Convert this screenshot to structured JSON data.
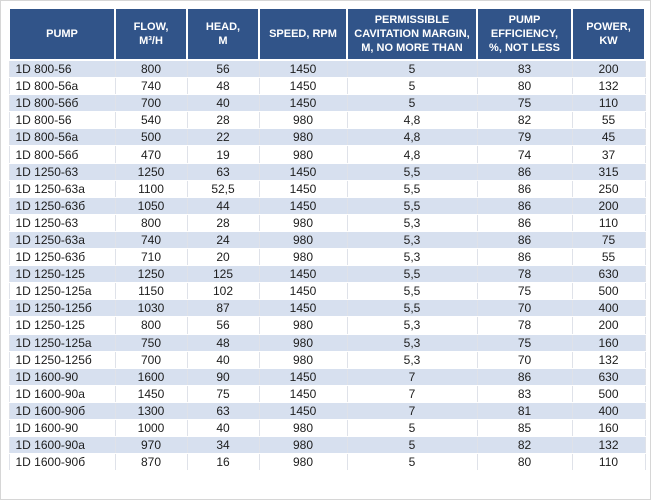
{
  "theme": {
    "header_bg": "#315489",
    "header_text": "#ffffff",
    "stripe_bg": "#d7e0ef",
    "row_bg": "#ffffff",
    "body_text": "#1d1d1d"
  },
  "table": {
    "columns": [
      {
        "id": "pump",
        "label": "PUMP"
      },
      {
        "id": "flow",
        "label": "FLOW,\nM³/H"
      },
      {
        "id": "head",
        "label": "HEAD,\nM"
      },
      {
        "id": "speed",
        "label": "SPEED, RPM"
      },
      {
        "id": "cavitation",
        "label": "PERMISSIBLE\nCAVITATION MARGIN,\nM, NO MORE THAN"
      },
      {
        "id": "efficiency",
        "label": "PUMP\nEFFICIENCY,\n%, NOT LESS"
      },
      {
        "id": "power",
        "label": "POWER,\nKW"
      }
    ],
    "rows": [
      [
        "1D 800-56",
        "800",
        "56",
        "1450",
        "5",
        "83",
        "200"
      ],
      [
        "1D 800-56a",
        "740",
        "48",
        "1450",
        "5",
        "80",
        "132"
      ],
      [
        "1D 800-56б",
        "700",
        "40",
        "1450",
        "5",
        "75",
        "110"
      ],
      [
        "1D 800-56",
        "540",
        "28",
        "980",
        "4,8",
        "82",
        "55"
      ],
      [
        "1D 800-56a",
        "500",
        "22",
        "980",
        "4,8",
        "79",
        "45"
      ],
      [
        "1D 800-56б",
        "470",
        "19",
        "980",
        "4,8",
        "74",
        "37"
      ],
      [
        "1D 1250-63",
        "1250",
        "63",
        "1450",
        "5,5",
        "86",
        "315"
      ],
      [
        "1D 1250-63a",
        "1100",
        "52,5",
        "1450",
        "5,5",
        "86",
        "250"
      ],
      [
        "1D 1250-63б",
        "1050",
        "44",
        "1450",
        "5,5",
        "86",
        "200"
      ],
      [
        "1D 1250-63",
        "800",
        "28",
        "980",
        "5,3",
        "86",
        "110"
      ],
      [
        "1D 1250-63a",
        "740",
        "24",
        "980",
        "5,3",
        "86",
        "75"
      ],
      [
        "1D 1250-63б",
        "710",
        "20",
        "980",
        "5,3",
        "86",
        "55"
      ],
      [
        "1D 1250-125",
        "1250",
        "125",
        "1450",
        "5,5",
        "78",
        "630"
      ],
      [
        "1D 1250-125a",
        "1150",
        "102",
        "1450",
        "5,5",
        "75",
        "500"
      ],
      [
        "1D 1250-125б",
        "1030",
        "87",
        "1450",
        "5,5",
        "70",
        "400"
      ],
      [
        "1D 1250-125",
        "800",
        "56",
        "980",
        "5,3",
        "78",
        "200"
      ],
      [
        "1D 1250-125a",
        "750",
        "48",
        "980",
        "5,3",
        "75",
        "160"
      ],
      [
        "1D 1250-125б",
        "700",
        "40",
        "980",
        "5,3",
        "70",
        "132"
      ],
      [
        "1D 1600-90",
        "1600",
        "90",
        "1450",
        "7",
        "86",
        "630"
      ],
      [
        "1D 1600-90a",
        "1450",
        "75",
        "1450",
        "7",
        "83",
        "500"
      ],
      [
        "1D 1600-90б",
        "1300",
        "63",
        "1450",
        "7",
        "81",
        "400"
      ],
      [
        "1D 1600-90",
        "1000",
        "40",
        "980",
        "5",
        "85",
        "160"
      ],
      [
        "1D 1600-90a",
        "970",
        "34",
        "980",
        "5",
        "82",
        "132"
      ],
      [
        "1D 1600-90б",
        "870",
        "16",
        "980",
        "5",
        "80",
        "110"
      ]
    ]
  }
}
